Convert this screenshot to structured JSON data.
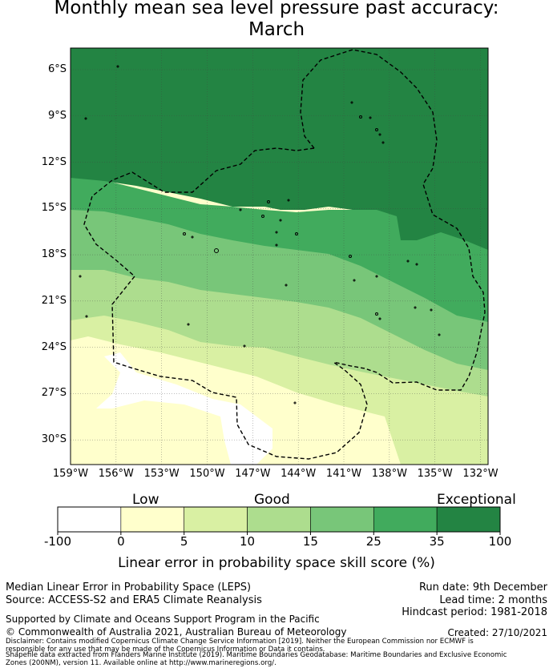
{
  "title": {
    "line1": "Monthly mean sea level pressure past accuracy:",
    "line2": "March"
  },
  "map": {
    "lat_labels": [
      "6°S",
      "9°S",
      "12°S",
      "15°S",
      "18°S",
      "21°S",
      "24°S",
      "27°S",
      "30°S"
    ],
    "lat_values": [
      -6,
      -9,
      -12,
      -15,
      -18,
      -21,
      -24,
      -27,
      -30
    ],
    "lon_labels": [
      "159°W",
      "156°W",
      "153°W",
      "150°W",
      "147°W",
      "144°W",
      "141°W",
      "138°W",
      "135°W",
      "132°W"
    ],
    "lon_values": [
      -159,
      -156,
      -153,
      -150,
      -147,
      -144,
      -141,
      -138,
      -135,
      -132
    ]
  },
  "legend": {
    "categories": {
      "low": "Low",
      "good": "Good",
      "exceptional": "Exceptional"
    },
    "ticks": [
      "-100",
      "0",
      "5",
      "10",
      "15",
      "25",
      "35",
      "100"
    ],
    "colors": [
      "#ffffff",
      "#ffffcc",
      "#d9f0a3",
      "#addd8e",
      "#78c679",
      "#41ab5d",
      "#238443"
    ],
    "label": "Linear error in probability space skill score (%)"
  },
  "footer": {
    "left1": "Median Linear Error in Probability Space (LEPS)",
    "left2": "Source: ACCESS-S2 and ERA5 Climate Reanalysis",
    "run_date": "Run date: 9th December",
    "lead_time": "Lead time: 2 months",
    "hindcast": "Hindcast period: 1981-2018",
    "supported": "Supported by Climate and Oceans Support Program in the Pacific",
    "copyright": "© Commonwealth of Australia 2021, Australian Bureau of Meteorology",
    "created": "Created: 27/10/2021",
    "disclaimer1": "Disclaimer: Contains modified Copernicus Climate Change Service Information [2019]. Neither the European Commission nor ECMWF is",
    "disclaimer2": "responsible for any use that may be made of the Copernicus Information or Data it contains.",
    "disclaimer3": "Shapefile data extracted from Flanders Marine Institute (2019). Maritime Boundaries Geodatabase: Maritime Boundaries and Exclusive Economic",
    "disclaimer4": "Zones (200NM), version 11. Available online at http://www.marineregions.org/."
  }
}
